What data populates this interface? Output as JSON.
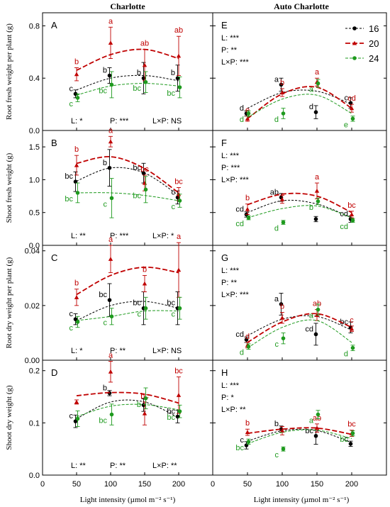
{
  "column_titles": [
    "Charlotte",
    "Auto Charlotte"
  ],
  "legend": [
    {
      "name": "16",
      "color": "#000000",
      "marker": "circle"
    },
    {
      "name": "20",
      "color": "#c00000",
      "marker": "triangle"
    },
    {
      "name": "24",
      "color": "#1e9a1e",
      "marker": "circle"
    }
  ],
  "xlabel": "Light intensity (µmol m⁻² s⁻¹)",
  "chart_data": [
    {
      "type": "line",
      "panel": "A",
      "column": "Charlotte",
      "ylabel": "Root fresh weight per plant (g)",
      "ylim": [
        0,
        0.9
      ],
      "yticks": [
        "0.0",
        "0.4",
        "0.8"
      ],
      "ytick_values": [
        0,
        0.4,
        0.8
      ],
      "x": [
        50,
        100,
        150,
        200
      ],
      "xlim": [
        0,
        250
      ],
      "xticks": [
        "0",
        "50",
        "100",
        "150",
        "200"
      ],
      "stats": [
        "L: *",
        "P: ***",
        "L×P: NS"
      ],
      "series": [
        {
          "name": "16",
          "values": [
            0.28,
            0.42,
            0.4,
            0.4
          ],
          "errors": [
            0.03,
            0.06,
            0.12,
            0.1
          ],
          "letters": [
            "c",
            "b",
            "b",
            "b"
          ],
          "fit": [
            0.31,
            0.4,
            0.42,
            0.38
          ]
        },
        {
          "name": "20",
          "values": [
            0.43,
            0.67,
            0.5,
            0.57
          ],
          "errors": [
            0.05,
            0.12,
            0.12,
            0.15
          ],
          "letters": [
            "b",
            "a",
            "ab",
            "ab"
          ],
          "fit": [
            0.46,
            0.58,
            0.62,
            0.55
          ]
        },
        {
          "name": "24",
          "values": [
            0.25,
            0.35,
            0.37,
            0.33
          ],
          "errors": [
            0.03,
            0.1,
            0.08,
            0.08
          ],
          "letters": [
            "c",
            "bc",
            "bc",
            "bc"
          ],
          "fit": [
            0.27,
            0.34,
            0.36,
            0.34
          ]
        }
      ]
    },
    {
      "type": "line",
      "panel": "E",
      "column": "Auto Charlotte",
      "ylim": [
        0,
        0.9
      ],
      "yticks": [],
      "ytick_values": [
        0,
        0.4,
        0.8
      ],
      "x": [
        50,
        100,
        150,
        200
      ],
      "xlim": [
        0,
        250
      ],
      "xticks": [
        "0",
        "50",
        "100",
        "150",
        "200"
      ],
      "stats": [
        "L: ***",
        "P: **",
        "L×P: ***"
      ],
      "series": [
        {
          "name": "16",
          "values": [
            0.13,
            0.35,
            0.14,
            0.21
          ],
          "errors": [
            0.02,
            0.05,
            0.05,
            0.04
          ],
          "letters": [
            "d",
            "a",
            "d",
            "c"
          ],
          "fit": [
            0.17,
            0.29,
            0.3,
            0.2
          ]
        },
        {
          "name": "20",
          "values": [
            0.09,
            0.29,
            0.37,
            0.17
          ],
          "errors": [
            0.02,
            0.03,
            0.03,
            0.03
          ],
          "letters": [
            "e",
            "b",
            "a",
            "cd"
          ],
          "fit": [
            0.09,
            0.28,
            0.33,
            0.17
          ]
        },
        {
          "name": "24",
          "values": [
            0.13,
            0.13,
            0.36,
            0.09
          ],
          "errors": [
            0.02,
            0.04,
            0.03,
            0.02
          ],
          "letters": [
            "d",
            "d",
            "a",
            "e"
          ],
          "fit": [
            0.1,
            0.24,
            0.27,
            0.13
          ]
        }
      ]
    },
    {
      "type": "line",
      "panel": "B",
      "column": "Charlotte",
      "ylabel": "Shoot fresh weight (g)",
      "ylim": [
        0,
        1.75
      ],
      "yticks": [
        "0.0",
        "0.5",
        "1.0",
        "1.5"
      ],
      "ytick_values": [
        0,
        0.5,
        1.0,
        1.5
      ],
      "x": [
        50,
        100,
        150,
        200
      ],
      "xlim": [
        0,
        250
      ],
      "xticks": [
        "0",
        "50",
        "100",
        "150",
        "200"
      ],
      "stats": [
        "L: **",
        "P: ***",
        "L×P: *"
      ],
      "series": [
        {
          "name": "16",
          "values": [
            0.97,
            1.18,
            1.1,
            0.73
          ],
          "errors": [
            0.15,
            0.28,
            0.15,
            0.1
          ],
          "letters": [
            "bc",
            "b",
            "bc",
            "c"
          ],
          "fit": [
            0.98,
            1.18,
            1.1,
            0.76
          ]
        },
        {
          "name": "20",
          "values": [
            1.22,
            1.58,
            0.95,
            0.78
          ],
          "errors": [
            0.15,
            0.08,
            0.12,
            0.1
          ],
          "letters": [
            "b",
            "a",
            "bc",
            "bc"
          ],
          "fit": [
            1.25,
            1.35,
            1.17,
            0.8
          ]
        },
        {
          "name": "24",
          "values": [
            0.8,
            0.72,
            0.85,
            0.68
          ],
          "errors": [
            0.15,
            0.3,
            0.2,
            0.1
          ],
          "letters": [
            "bc",
            "c",
            "bc",
            "c"
          ],
          "fit": [
            0.8,
            0.8,
            0.76,
            0.68
          ]
        }
      ]
    },
    {
      "type": "line",
      "panel": "F",
      "column": "Auto Charlotte",
      "ylim": [
        0,
        1.75
      ],
      "yticks": [],
      "ytick_values": [
        0,
        0.5,
        1.0,
        1.5
      ],
      "x": [
        50,
        100,
        150,
        200
      ],
      "xlim": [
        0,
        250
      ],
      "xticks": [
        "0",
        "50",
        "100",
        "150",
        "200"
      ],
      "stats": [
        "L: ***",
        "P: ***",
        "L×P: ***"
      ],
      "series": [
        {
          "name": "16",
          "values": [
            0.47,
            0.73,
            0.4,
            0.4
          ],
          "errors": [
            0.04,
            0.06,
            0.04,
            0.05
          ],
          "letters": [
            "cd",
            "ab",
            "",
            "cd"
          ],
          "fit": [
            0.5,
            0.68,
            0.63,
            0.42
          ]
        },
        {
          "name": "20",
          "values": [
            0.55,
            0.7,
            0.83,
            0.47
          ],
          "errors": [
            0.08,
            0.06,
            0.12,
            0.05
          ],
          "letters": [
            "b",
            "",
            "a",
            "bc"
          ],
          "fit": [
            0.62,
            0.78,
            0.75,
            0.5
          ]
        },
        {
          "name": "24",
          "values": [
            0.42,
            0.35,
            0.67,
            0.38
          ],
          "errors": [
            0.03,
            0.03,
            0.05,
            0.03
          ],
          "letters": [
            "cd",
            "d",
            "b",
            "cd"
          ],
          "fit": [
            0.42,
            0.56,
            0.6,
            0.42
          ]
        }
      ]
    },
    {
      "type": "line",
      "panel": "C",
      "column": "Charlotte",
      "ylabel": "Root dry weight per plant (g)",
      "ylim": [
        0,
        0.042
      ],
      "yticks": [
        "0.00",
        "0.02",
        "0.04"
      ],
      "ytick_values": [
        0,
        0.02,
        0.04
      ],
      "x": [
        50,
        100,
        150,
        200
      ],
      "xlim": [
        0,
        250
      ],
      "xticks": [
        "0",
        "50",
        "100",
        "150",
        "200"
      ],
      "stats": [
        "L: *",
        "P: **",
        "L×P: NS"
      ],
      "series": [
        {
          "name": "16",
          "values": [
            0.015,
            0.022,
            0.019,
            0.019
          ],
          "errors": [
            0.002,
            0.006,
            0.006,
            0.006
          ],
          "letters": [
            "c",
            "bc",
            "bc",
            "bc"
          ],
          "fit": [
            0.0145,
            0.02,
            0.0215,
            0.019
          ]
        },
        {
          "name": "20",
          "values": [
            0.023,
            0.037,
            0.028,
            0.033
          ],
          "errors": [
            0.003,
            0.005,
            0.003,
            0.01
          ],
          "letters": [
            "b",
            "a",
            "b",
            "a"
          ],
          "fit": [
            0.024,
            0.031,
            0.034,
            0.032
          ]
        },
        {
          "name": "24",
          "values": [
            0.014,
            0.016,
            0.019,
            0.019
          ],
          "errors": [
            0.002,
            0.003,
            0.004,
            0.004
          ],
          "letters": [
            "c",
            "c",
            "c",
            "c"
          ],
          "fit": [
            0.0145,
            0.016,
            0.018,
            0.018
          ]
        }
      ]
    },
    {
      "type": "line",
      "panel": "G",
      "column": "Auto Charlotte",
      "ylim": [
        0,
        0.042
      ],
      "yticks": [],
      "ytick_values": [
        0,
        0.02,
        0.04
      ],
      "x": [
        50,
        100,
        150,
        200
      ],
      "xlim": [
        0,
        250
      ],
      "xticks": [
        "0",
        "50",
        "100",
        "150",
        "200"
      ],
      "stats": [
        "L: ***",
        "P: **",
        "L×P: ***"
      ],
      "series": [
        {
          "name": "16",
          "values": [
            0.0075,
            0.0205,
            0.0095,
            0.012
          ],
          "errors": [
            0.001,
            0.004,
            0.004,
            0.002
          ],
          "letters": [
            "cd",
            "a",
            "cd",
            "bc"
          ],
          "fit": [
            0.009,
            0.015,
            0.016,
            0.011
          ]
        },
        {
          "name": "20",
          "values": [
            0.0055,
            0.0155,
            0.0165,
            0.0115
          ],
          "errors": [
            0.001,
            0.002,
            0.002,
            0.001
          ],
          "letters": [
            "d",
            "b",
            "ab",
            "c"
          ],
          "fit": [
            0.0065,
            0.014,
            0.017,
            0.012
          ]
        },
        {
          "name": "24",
          "values": [
            0.005,
            0.008,
            0.0185,
            0.0045
          ],
          "errors": [
            0.001,
            0.002,
            0.002,
            0.001
          ],
          "letters": [
            "d",
            "c",
            "a",
            "d"
          ],
          "fit": [
            0.0045,
            0.012,
            0.0145,
            0.0065
          ]
        }
      ]
    },
    {
      "type": "line",
      "panel": "D",
      "column": "Charlotte",
      "ylabel": "Shoot dry weight (g)",
      "ylim": [
        0,
        0.22
      ],
      "yticks": [
        "0.0",
        "0.1",
        "0.2"
      ],
      "ytick_values": [
        0,
        0.1,
        0.2
      ],
      "x": [
        50,
        100,
        150,
        200
      ],
      "xlim": [
        0,
        250
      ],
      "xticks": [
        "0",
        "50",
        "100",
        "150",
        "200"
      ],
      "stats": [
        "L: **",
        "P: **",
        "L×P: **"
      ],
      "series": [
        {
          "name": "16",
          "values": [
            0.103,
            0.157,
            0.134,
            0.112
          ],
          "errors": [
            0.012,
            0.005,
            0.012,
            0.012
          ],
          "letters": [
            "c",
            "b",
            "",
            "bc"
          ],
          "fit": [
            0.108,
            0.14,
            0.14,
            0.11
          ]
        },
        {
          "name": "20",
          "values": [
            0.14,
            0.198,
            0.118,
            0.153
          ],
          "errors": [
            0.004,
            0.02,
            0.022,
            0.035
          ],
          "letters": [
            "",
            "a",
            "bc",
            "bc"
          ],
          "fit": [
            0.152,
            0.158,
            0.155,
            0.138
          ]
        },
        {
          "name": "24",
          "values": [
            0.108,
            0.116,
            0.147,
            0.122
          ],
          "errors": [
            0.015,
            0.02,
            0.02,
            0.012
          ],
          "letters": [
            "",
            "bc",
            "b",
            "bc"
          ],
          "fit": [
            0.112,
            0.132,
            0.135,
            0.125
          ]
        }
      ]
    },
    {
      "type": "line",
      "panel": "H",
      "column": "Auto Charlotte",
      "ylim": [
        0,
        0.22
      ],
      "yticks": [],
      "ytick_values": [
        0,
        0.1,
        0.2
      ],
      "x": [
        50,
        100,
        150,
        200
      ],
      "xlim": [
        0,
        250
      ],
      "xticks": [
        "0",
        "50",
        "100",
        "150",
        "200"
      ],
      "stats": [
        "L: ***",
        "P: *",
        "L×P: **"
      ],
      "series": [
        {
          "name": "16",
          "values": [
            0.057,
            0.088,
            0.075,
            0.06
          ],
          "errors": [
            0.007,
            0.006,
            0.016,
            0.005
          ],
          "letters": [
            "c",
            "b",
            "bc",
            "c"
          ],
          "fit": [
            0.065,
            0.085,
            0.085,
            0.062
          ]
        },
        {
          "name": "20",
          "values": [
            0.082,
            0.085,
            0.09,
            0.08
          ],
          "errors": [
            0.006,
            0.008,
            0.008,
            0.006
          ],
          "letters": [
            "b",
            "",
            "ab",
            "bc"
          ],
          "fit": [
            0.08,
            0.088,
            0.09,
            0.078
          ]
        },
        {
          "name": "24",
          "values": [
            0.064,
            0.05,
            0.116,
            0.08
          ],
          "errors": [
            0.005,
            0.004,
            0.008,
            0.005
          ],
          "letters": [
            "bc",
            "c",
            "a",
            "bc"
          ],
          "fit": [
            0.06,
            0.082,
            0.086,
            0.07
          ]
        }
      ]
    }
  ]
}
